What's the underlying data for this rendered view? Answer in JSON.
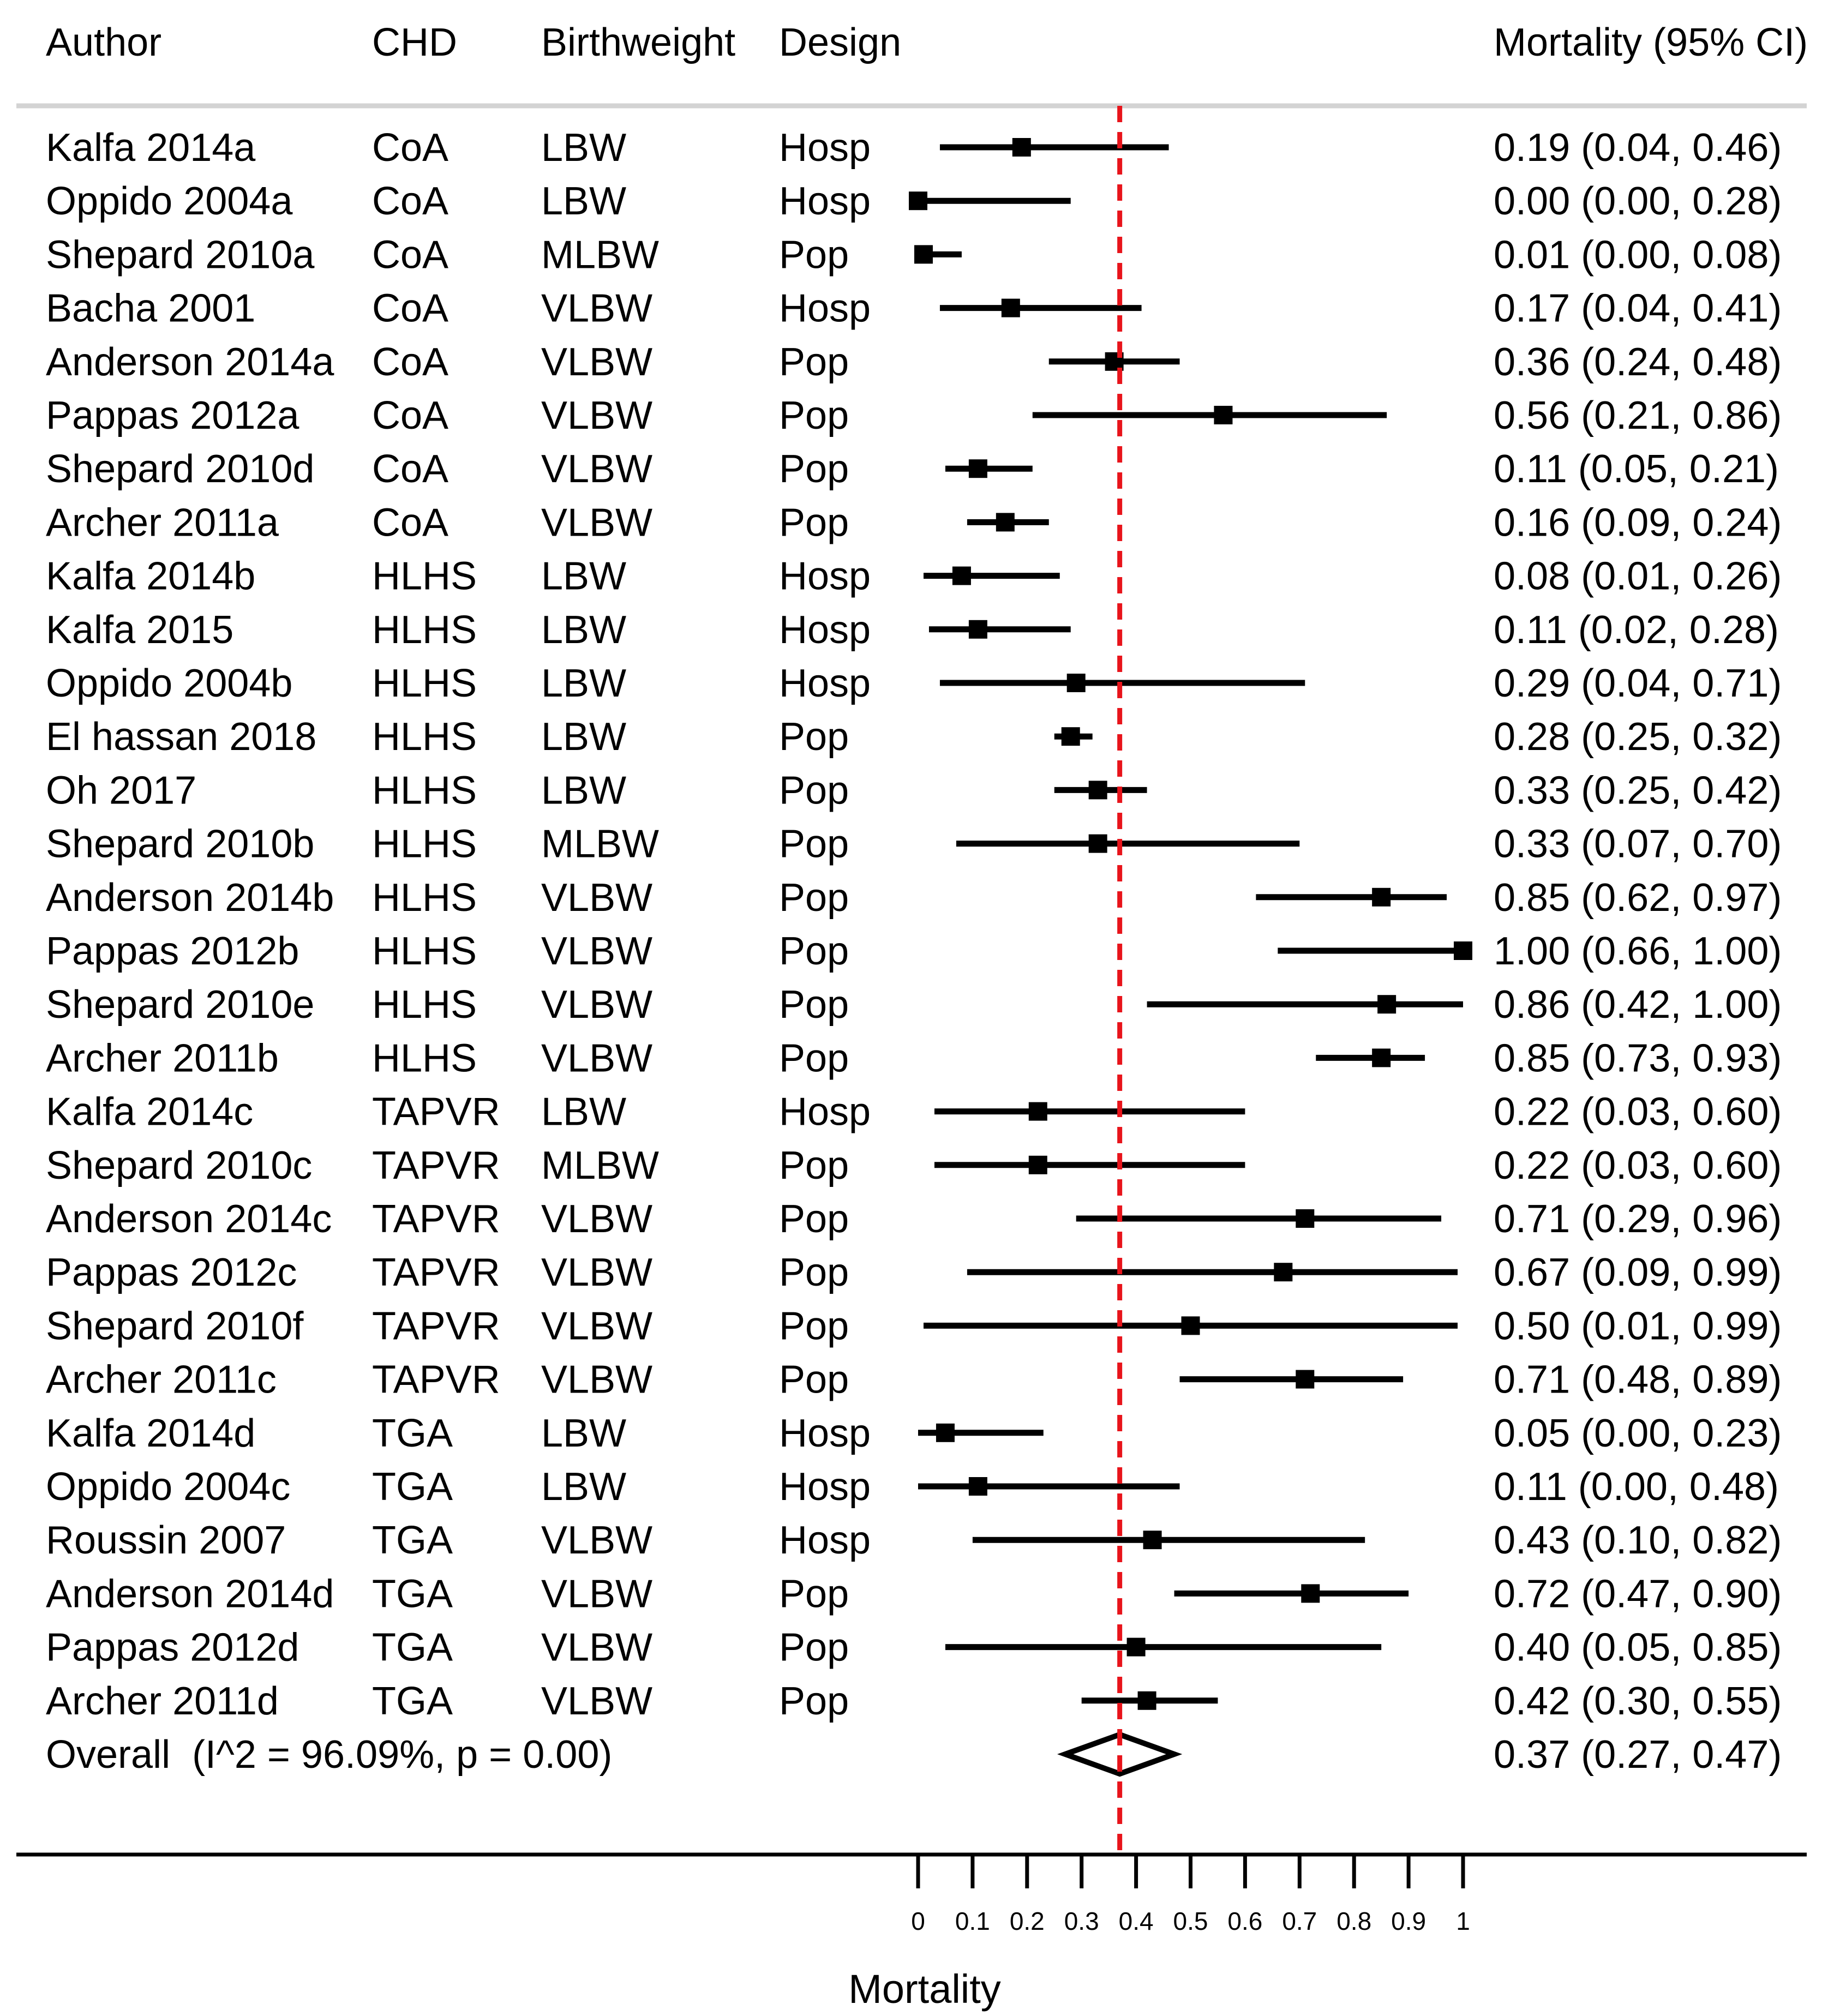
{
  "chart_data": {
    "type": "forest",
    "columns": {
      "author": "Author",
      "chd": "CHD",
      "birthweight": "Birthweight",
      "design": "Design",
      "estimate": "Mortality (95% CI)"
    },
    "xlabel": "Mortality",
    "xlim": [
      0,
      1
    ],
    "xticks": [
      0,
      0.1,
      0.2,
      0.3,
      0.4,
      0.5,
      0.6,
      0.7,
      0.8,
      0.9,
      1
    ],
    "xtick_labels": [
      "0",
      "0.1",
      "0.2",
      "0.3",
      "0.4",
      "0.5",
      "0.6",
      "0.7",
      "0.8",
      "0.9",
      "1"
    ],
    "reference_line": 0.37,
    "reference_color": "#e8141b",
    "studies": [
      {
        "author": "Kalfa 2014a",
        "chd": "CoA",
        "birthweight": "LBW",
        "design": "Hosp",
        "est": 0.19,
        "lo": 0.04,
        "hi": 0.46,
        "label": "0.19 (0.04, 0.46)"
      },
      {
        "author": "Oppido 2004a",
        "chd": "CoA",
        "birthweight": "LBW",
        "design": "Hosp",
        "est": 0.0,
        "lo": 0.0,
        "hi": 0.28,
        "label": "0.00 (0.00, 0.28)"
      },
      {
        "author": "Shepard 2010a",
        "chd": "CoA",
        "birthweight": "MLBW",
        "design": "Pop",
        "est": 0.01,
        "lo": 0.0,
        "hi": 0.08,
        "label": "0.01 (0.00, 0.08)"
      },
      {
        "author": "Bacha 2001",
        "chd": "CoA",
        "birthweight": "VLBW",
        "design": "Hosp",
        "est": 0.17,
        "lo": 0.04,
        "hi": 0.41,
        "label": "0.17 (0.04, 0.41)"
      },
      {
        "author": "Anderson 2014a",
        "chd": "CoA",
        "birthweight": "VLBW",
        "design": "Pop",
        "est": 0.36,
        "lo": 0.24,
        "hi": 0.48,
        "label": "0.36 (0.24, 0.48)"
      },
      {
        "author": "Pappas 2012a",
        "chd": "CoA",
        "birthweight": "VLBW",
        "design": "Pop",
        "est": 0.56,
        "lo": 0.21,
        "hi": 0.86,
        "label": "0.56 (0.21, 0.86)"
      },
      {
        "author": "Shepard 2010d",
        "chd": "CoA",
        "birthweight": "VLBW",
        "design": "Pop",
        "est": 0.11,
        "lo": 0.05,
        "hi": 0.21,
        "label": "0.11 (0.05, 0.21)"
      },
      {
        "author": "Archer 2011a",
        "chd": "CoA",
        "birthweight": "VLBW",
        "design": "Pop",
        "est": 0.16,
        "lo": 0.09,
        "hi": 0.24,
        "label": "0.16 (0.09, 0.24)"
      },
      {
        "author": "Kalfa 2014b",
        "chd": "HLHS",
        "birthweight": "LBW",
        "design": "Hosp",
        "est": 0.08,
        "lo": 0.01,
        "hi": 0.26,
        "label": "0.08 (0.01, 0.26)"
      },
      {
        "author": "Kalfa 2015",
        "chd": "HLHS",
        "birthweight": "LBW",
        "design": "Hosp",
        "est": 0.11,
        "lo": 0.02,
        "hi": 0.28,
        "label": "0.11 (0.02, 0.28)"
      },
      {
        "author": "Oppido 2004b",
        "chd": "HLHS",
        "birthweight": "LBW",
        "design": "Hosp",
        "est": 0.29,
        "lo": 0.04,
        "hi": 0.71,
        "label": "0.29 (0.04, 0.71)"
      },
      {
        "author": "El hassan 2018",
        "chd": "HLHS",
        "birthweight": "LBW",
        "design": "Pop",
        "est": 0.28,
        "lo": 0.25,
        "hi": 0.32,
        "label": "0.28 (0.25, 0.32)"
      },
      {
        "author": "Oh 2017",
        "chd": "HLHS",
        "birthweight": "LBW",
        "design": "Pop",
        "est": 0.33,
        "lo": 0.25,
        "hi": 0.42,
        "label": "0.33 (0.25, 0.42)"
      },
      {
        "author": "Shepard 2010b",
        "chd": "HLHS",
        "birthweight": "MLBW",
        "design": "Pop",
        "est": 0.33,
        "lo": 0.07,
        "hi": 0.7,
        "label": "0.33 (0.07, 0.70)"
      },
      {
        "author": "Anderson 2014b",
        "chd": "HLHS",
        "birthweight": "VLBW",
        "design": "Pop",
        "est": 0.85,
        "lo": 0.62,
        "hi": 0.97,
        "label": "0.85 (0.62, 0.97)"
      },
      {
        "author": "Pappas 2012b",
        "chd": "HLHS",
        "birthweight": "VLBW",
        "design": "Pop",
        "est": 1.0,
        "lo": 0.66,
        "hi": 1.0,
        "label": "1.00 (0.66, 1.00)"
      },
      {
        "author": "Shepard 2010e",
        "chd": "HLHS",
        "birthweight": "VLBW",
        "design": "Pop",
        "est": 0.86,
        "lo": 0.42,
        "hi": 1.0,
        "label": "0.86 (0.42, 1.00)"
      },
      {
        "author": "Archer 2011b",
        "chd": "HLHS",
        "birthweight": "VLBW",
        "design": "Pop",
        "est": 0.85,
        "lo": 0.73,
        "hi": 0.93,
        "label": "0.85 (0.73, 0.93)"
      },
      {
        "author": "Kalfa 2014c",
        "chd": "TAPVR",
        "birthweight": "LBW",
        "design": "Hosp",
        "est": 0.22,
        "lo": 0.03,
        "hi": 0.6,
        "label": "0.22 (0.03, 0.60)"
      },
      {
        "author": "Shepard 2010c",
        "chd": "TAPVR",
        "birthweight": "MLBW",
        "design": "Pop",
        "est": 0.22,
        "lo": 0.03,
        "hi": 0.6,
        "label": "0.22 (0.03, 0.60)"
      },
      {
        "author": "Anderson 2014c",
        "chd": "TAPVR",
        "birthweight": "VLBW",
        "design": "Pop",
        "est": 0.71,
        "lo": 0.29,
        "hi": 0.96,
        "label": "0.71 (0.29, 0.96)"
      },
      {
        "author": "Pappas 2012c",
        "chd": "TAPVR",
        "birthweight": "VLBW",
        "design": "Pop",
        "est": 0.67,
        "lo": 0.09,
        "hi": 0.99,
        "label": "0.67 (0.09, 0.99)"
      },
      {
        "author": "Shepard 2010f",
        "chd": "TAPVR",
        "birthweight": "VLBW",
        "design": "Pop",
        "est": 0.5,
        "lo": 0.01,
        "hi": 0.99,
        "label": "0.50 (0.01, 0.99)"
      },
      {
        "author": "Archer 2011c",
        "chd": "TAPVR",
        "birthweight": "VLBW",
        "design": "Pop",
        "est": 0.71,
        "lo": 0.48,
        "hi": 0.89,
        "label": "0.71 (0.48, 0.89)"
      },
      {
        "author": "Kalfa 2014d",
        "chd": "TGA",
        "birthweight": "LBW",
        "design": "Hosp",
        "est": 0.05,
        "lo": 0.0,
        "hi": 0.23,
        "label": "0.05 (0.00, 0.23)"
      },
      {
        "author": "Oppido 2004c",
        "chd": "TGA",
        "birthweight": "LBW",
        "design": "Hosp",
        "est": 0.11,
        "lo": 0.0,
        "hi": 0.48,
        "label": "0.11 (0.00, 0.48)"
      },
      {
        "author": "Roussin 2007",
        "chd": "TGA",
        "birthweight": "VLBW",
        "design": "Hosp",
        "est": 0.43,
        "lo": 0.1,
        "hi": 0.82,
        "label": "0.43 (0.10, 0.82)"
      },
      {
        "author": "Anderson 2014d",
        "chd": "TGA",
        "birthweight": "VLBW",
        "design": "Pop",
        "est": 0.72,
        "lo": 0.47,
        "hi": 0.9,
        "label": "0.72 (0.47, 0.90)"
      },
      {
        "author": "Pappas 2012d",
        "chd": "TGA",
        "birthweight": "VLBW",
        "design": "Pop",
        "est": 0.4,
        "lo": 0.05,
        "hi": 0.85,
        "label": "0.40 (0.05, 0.85)"
      },
      {
        "author": "Archer 2011d",
        "chd": "TGA",
        "birthweight": "VLBW",
        "design": "Pop",
        "est": 0.42,
        "lo": 0.3,
        "hi": 0.55,
        "label": "0.42 (0.30, 0.55)"
      }
    ],
    "overall": {
      "label_text": "Overall  (I^2 = 96.09%, p = 0.00)",
      "est": 0.37,
      "lo": 0.27,
      "hi": 0.47,
      "label": "0.37 (0.27, 0.47)"
    }
  }
}
